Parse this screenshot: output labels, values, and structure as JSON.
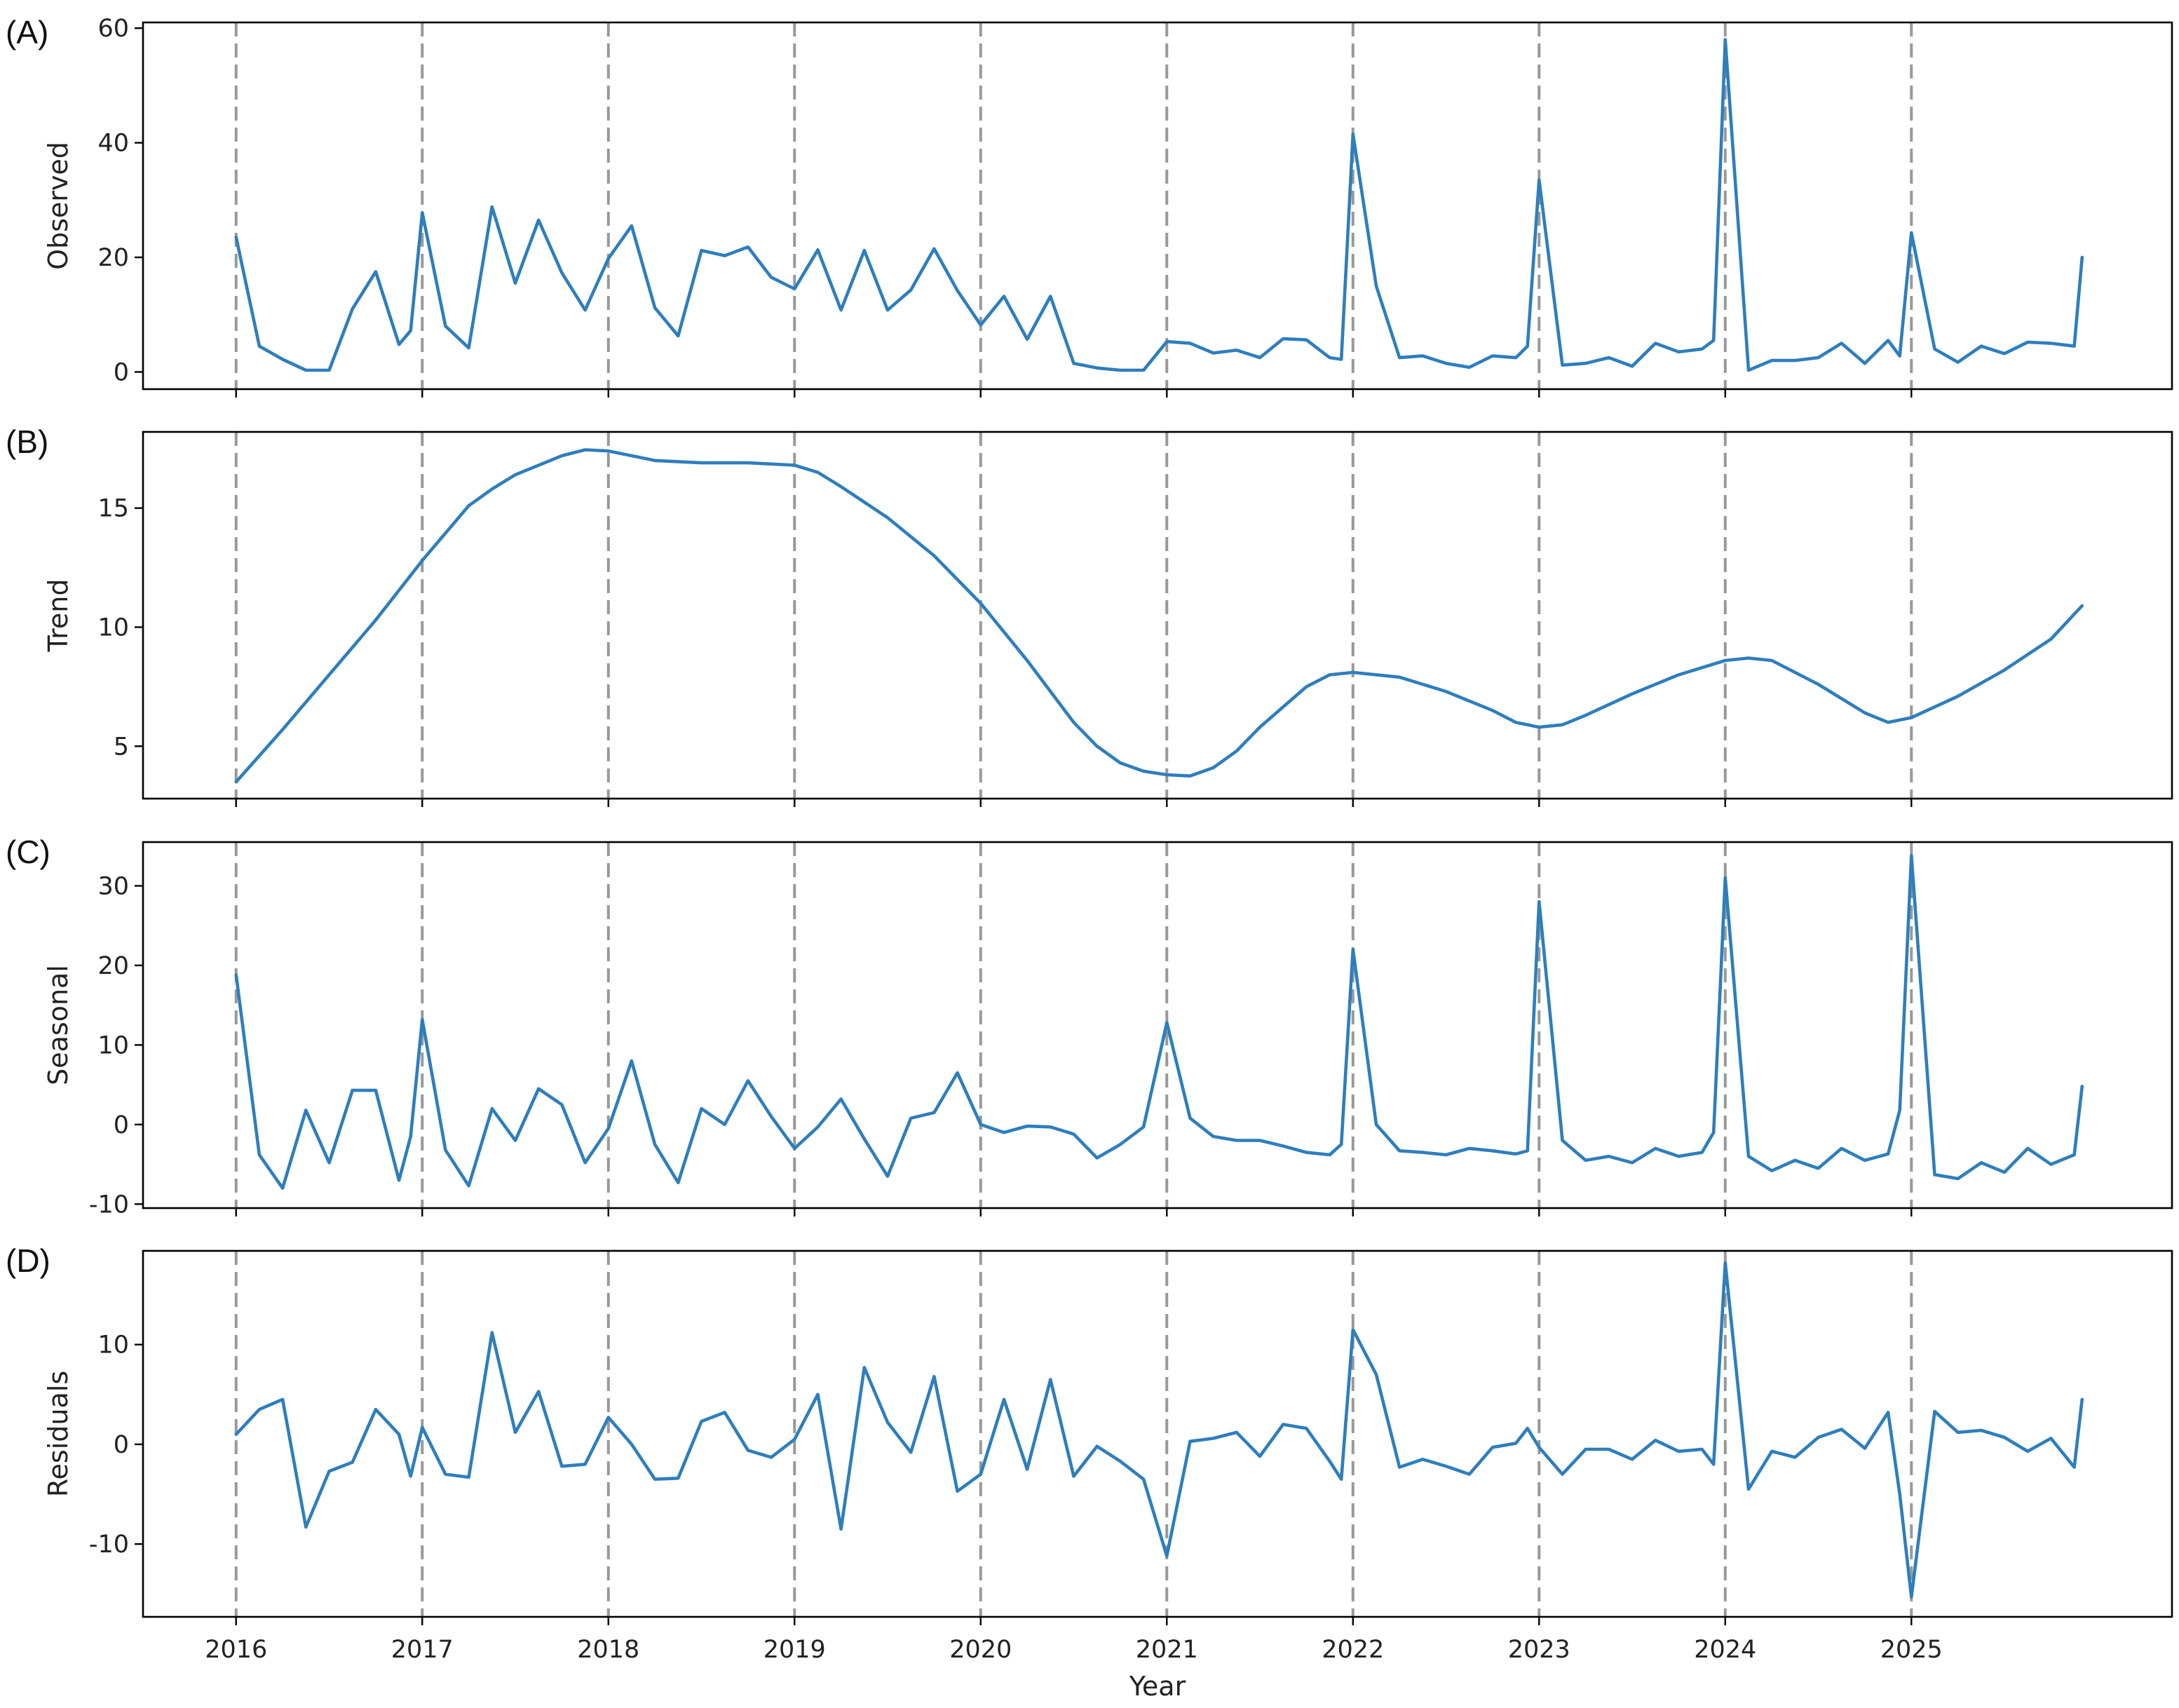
{
  "colors": {
    "series": "#2e7ebc",
    "vline": "#999999"
  },
  "chart_data": [
    {
      "type": "line",
      "panel_label": "(A)",
      "ylabel": "Observed",
      "xlabel": "",
      "yticks": [
        0,
        20,
        40,
        60
      ],
      "ylim": [
        -3,
        61
      ],
      "xlim": [
        2015.5,
        2026.4
      ],
      "vertical_lines": [
        2016,
        2017,
        2018,
        2019,
        2020,
        2021,
        2022,
        2023,
        2024,
        2025
      ],
      "x": [
        2016,
        2016.125,
        2016.25,
        2016.375,
        2016.5,
        2016.625,
        2016.75,
        2016.875,
        2016.9375,
        2017,
        2017.125,
        2017.25,
        2017.375,
        2017.5,
        2017.625,
        2017.75,
        2017.875,
        2018,
        2018.125,
        2018.25,
        2018.375,
        2018.5,
        2018.625,
        2018.75,
        2018.875,
        2019,
        2019.125,
        2019.25,
        2019.375,
        2019.5,
        2019.625,
        2019.75,
        2019.875,
        2020,
        2020.125,
        2020.25,
        2020.375,
        2020.5,
        2020.625,
        2020.75,
        2020.875,
        2021,
        2021.125,
        2021.25,
        2021.375,
        2021.5,
        2021.625,
        2021.75,
        2021.875,
        2021.9375,
        2022,
        2022.125,
        2022.25,
        2022.375,
        2022.5,
        2022.625,
        2022.75,
        2022.875,
        2022.9375,
        2023,
        2023.125,
        2023.25,
        2023.375,
        2023.5,
        2023.625,
        2023.75,
        2023.875,
        2023.9375,
        2024,
        2024.125,
        2024.25,
        2024.375,
        2024.5,
        2024.625,
        2024.75,
        2024.875,
        2024.9375,
        2025,
        2025.125,
        2025.25,
        2025.375,
        2025.5,
        2025.625,
        2025.75,
        2025.875,
        2025.917
      ],
      "values": [
        23.5,
        4.5,
        2.2,
        0.3,
        0.3,
        11.0,
        17.5,
        4.8,
        7.2,
        27.8,
        8.0,
        4.2,
        28.8,
        15.5,
        26.5,
        17.3,
        10.8,
        19.8,
        25.5,
        11.2,
        6.3,
        21.2,
        20.3,
        21.8,
        16.5,
        14.5,
        21.3,
        10.8,
        21.2,
        10.8,
        14.3,
        21.5,
        14.2,
        8.2,
        13.2,
        5.7,
        13.2,
        1.5,
        0.7,
        0.3,
        0.3,
        5.3,
        5.0,
        3.3,
        3.8,
        2.5,
        5.8,
        5.6,
        2.5,
        2.2,
        41.5,
        15.0,
        2.5,
        2.8,
        1.5,
        0.8,
        2.8,
        2.5,
        4.5,
        33.5,
        1.2,
        1.5,
        2.5,
        1.0,
        5.0,
        3.5,
        4.0,
        5.5,
        58.0,
        0.3,
        2.0,
        2.0,
        2.5,
        5.0,
        1.5,
        5.5,
        2.8,
        24.3,
        4.0,
        1.7,
        4.5,
        3.2,
        5.2,
        5.0,
        4.5,
        20.0
      ]
    },
    {
      "type": "line",
      "panel_label": "(B)",
      "ylabel": "Trend",
      "xlabel": "",
      "yticks": [
        5,
        10,
        15
      ],
      "ylim": [
        2.8,
        18.2
      ],
      "xlim": [
        2015.5,
        2026.4
      ],
      "vertical_lines": [
        2016,
        2017,
        2018,
        2019,
        2020,
        2021,
        2022,
        2023,
        2024,
        2025
      ],
      "x": [
        2016,
        2016.25,
        2016.5,
        2016.75,
        2017,
        2017.25,
        2017.375,
        2017.5,
        2017.75,
        2017.875,
        2018,
        2018.25,
        2018.5,
        2018.75,
        2019,
        2019.125,
        2019.25,
        2019.5,
        2019.75,
        2020,
        2020.25,
        2020.5,
        2020.625,
        2020.75,
        2020.875,
        2021,
        2021.125,
        2021.25,
        2021.375,
        2021.5,
        2021.75,
        2021.875,
        2022,
        2022.25,
        2022.5,
        2022.75,
        2022.875,
        2023,
        2023.125,
        2023.25,
        2023.5,
        2023.75,
        2024,
        2024.125,
        2024.25,
        2024.5,
        2024.75,
        2024.875,
        2025,
        2025.25,
        2025.5,
        2025.75,
        2025.917
      ],
      "values": [
        3.5,
        5.7,
        8.0,
        10.3,
        12.8,
        15.1,
        15.8,
        16.4,
        17.2,
        17.45,
        17.4,
        17.0,
        16.9,
        16.9,
        16.8,
        16.5,
        15.9,
        14.6,
        13.0,
        11.0,
        8.6,
        6.0,
        5.0,
        4.3,
        3.95,
        3.8,
        3.75,
        4.1,
        4.8,
        5.8,
        7.5,
        8.0,
        8.1,
        7.9,
        7.3,
        6.5,
        6.0,
        5.8,
        5.9,
        6.3,
        7.2,
        8.0,
        8.6,
        8.7,
        8.6,
        7.6,
        6.4,
        6.0,
        6.2,
        7.1,
        8.2,
        9.5,
        10.9
      ]
    },
    {
      "type": "line",
      "panel_label": "(C)",
      "ylabel": "Seasonal",
      "xlabel": "",
      "yticks": [
        -10,
        0,
        10,
        20,
        30
      ],
      "ylim": [
        -10.5,
        35.5
      ],
      "xlim": [
        2015.5,
        2026.4
      ],
      "vertical_lines": [
        2016,
        2017,
        2018,
        2019,
        2020,
        2021,
        2022,
        2023,
        2024,
        2025
      ],
      "x": [
        2016,
        2016.125,
        2016.25,
        2016.375,
        2016.5,
        2016.625,
        2016.75,
        2016.875,
        2016.9375,
        2017,
        2017.125,
        2017.25,
        2017.375,
        2017.5,
        2017.625,
        2017.75,
        2017.875,
        2018,
        2018.125,
        2018.25,
        2018.375,
        2018.5,
        2018.625,
        2018.75,
        2018.875,
        2019,
        2019.125,
        2019.25,
        2019.375,
        2019.5,
        2019.625,
        2019.75,
        2019.875,
        2020,
        2020.125,
        2020.25,
        2020.375,
        2020.5,
        2020.625,
        2020.75,
        2020.875,
        2021,
        2021.125,
        2021.25,
        2021.375,
        2021.5,
        2021.625,
        2021.75,
        2021.875,
        2021.9375,
        2022,
        2022.125,
        2022.25,
        2022.375,
        2022.5,
        2022.625,
        2022.75,
        2022.875,
        2022.9375,
        2023,
        2023.125,
        2023.25,
        2023.375,
        2023.5,
        2023.625,
        2023.75,
        2023.875,
        2023.9375,
        2024,
        2024.125,
        2024.25,
        2024.375,
        2024.5,
        2024.625,
        2024.75,
        2024.875,
        2024.9375,
        2025,
        2025.125,
        2025.25,
        2025.375,
        2025.5,
        2025.625,
        2025.75,
        2025.875,
        2025.917
      ],
      "values": [
        18.8,
        -3.8,
        -8.0,
        1.8,
        -4.8,
        4.3,
        4.3,
        -7.0,
        -1.5,
        13.2,
        -3.2,
        -7.7,
        2.0,
        -2.0,
        4.5,
        2.5,
        -4.8,
        -0.5,
        8.0,
        -2.5,
        -7.3,
        2.0,
        0.0,
        5.5,
        1.0,
        -3.0,
        -0.3,
        3.2,
        -1.8,
        -6.5,
        0.8,
        1.5,
        6.5,
        0.0,
        -1.0,
        -0.2,
        -0.3,
        -1.2,
        -4.2,
        -2.5,
        -0.3,
        12.8,
        0.8,
        -1.5,
        -2.0,
        -2.0,
        -2.7,
        -3.5,
        -3.8,
        -2.5,
        22.0,
        0.0,
        -3.3,
        -3.5,
        -3.8,
        -3.0,
        -3.3,
        -3.7,
        -3.3,
        28.0,
        -2.0,
        -4.5,
        -4.0,
        -4.8,
        -3.0,
        -4.0,
        -3.5,
        -1.0,
        31.0,
        -4.0,
        -5.8,
        -4.5,
        -5.5,
        -3.0,
        -4.5,
        -3.7,
        1.8,
        33.8,
        -6.3,
        -6.8,
        -4.8,
        -6.0,
        -3.0,
        -5.0,
        -3.8,
        4.8
      ]
    },
    {
      "type": "line",
      "panel_label": "(D)",
      "ylabel": "Residuals",
      "xlabel": "Year",
      "yticks": [
        -10,
        0,
        10
      ],
      "ylim": [
        -17.3,
        19.4
      ],
      "xlim": [
        2015.5,
        2026.4
      ],
      "xticks": [
        2016,
        2017,
        2018,
        2019,
        2020,
        2021,
        2022,
        2023,
        2024,
        2025
      ],
      "vertical_lines": [
        2016,
        2017,
        2018,
        2019,
        2020,
        2021,
        2022,
        2023,
        2024,
        2025
      ],
      "x": [
        2016,
        2016.125,
        2016.25,
        2016.375,
        2016.5,
        2016.625,
        2016.75,
        2016.875,
        2016.9375,
        2017,
        2017.125,
        2017.25,
        2017.375,
        2017.5,
        2017.625,
        2017.75,
        2017.875,
        2018,
        2018.125,
        2018.25,
        2018.375,
        2018.5,
        2018.625,
        2018.75,
        2018.875,
        2019,
        2019.125,
        2019.25,
        2019.375,
        2019.5,
        2019.625,
        2019.75,
        2019.875,
        2020,
        2020.125,
        2020.25,
        2020.375,
        2020.5,
        2020.625,
        2020.75,
        2020.875,
        2021,
        2021.125,
        2021.25,
        2021.375,
        2021.5,
        2021.625,
        2021.75,
        2021.875,
        2021.9375,
        2022,
        2022.125,
        2022.25,
        2022.375,
        2022.5,
        2022.625,
        2022.75,
        2022.875,
        2022.9375,
        2023,
        2023.125,
        2023.25,
        2023.375,
        2023.5,
        2023.625,
        2023.75,
        2023.875,
        2023.9375,
        2024,
        2024.125,
        2024.25,
        2024.375,
        2024.5,
        2024.625,
        2024.75,
        2024.875,
        2024.9375,
        2025,
        2025.125,
        2025.25,
        2025.375,
        2025.5,
        2025.625,
        2025.75,
        2025.875,
        2025.917
      ],
      "values": [
        1.0,
        3.5,
        4.5,
        -8.3,
        -2.7,
        -1.8,
        3.5,
        1.0,
        -3.2,
        1.7,
        -3.0,
        -3.3,
        11.2,
        1.2,
        5.3,
        -2.2,
        -2.0,
        2.7,
        0.0,
        -3.5,
        -3.4,
        2.3,
        3.2,
        -0.6,
        -1.3,
        0.5,
        5.0,
        -8.5,
        7.7,
        2.2,
        -0.8,
        6.8,
        -4.7,
        -3.0,
        4.5,
        -2.5,
        6.5,
        -3.2,
        -0.2,
        -1.7,
        -3.5,
        -11.2,
        0.3,
        0.6,
        1.2,
        -1.2,
        2.0,
        1.6,
        -1.7,
        -3.5,
        11.5,
        7.0,
        -2.3,
        -1.5,
        -2.2,
        -3.0,
        -0.3,
        0.1,
        1.6,
        -0.3,
        -3.0,
        -0.5,
        -0.5,
        -1.5,
        0.4,
        -0.7,
        -0.5,
        -2.0,
        18.2,
        -4.5,
        -0.7,
        -1.3,
        0.7,
        1.5,
        -0.4,
        3.2,
        -5.0,
        -15.3,
        3.3,
        1.2,
        1.4,
        0.7,
        -0.7,
        0.6,
        -2.3,
        4.5
      ]
    }
  ]
}
